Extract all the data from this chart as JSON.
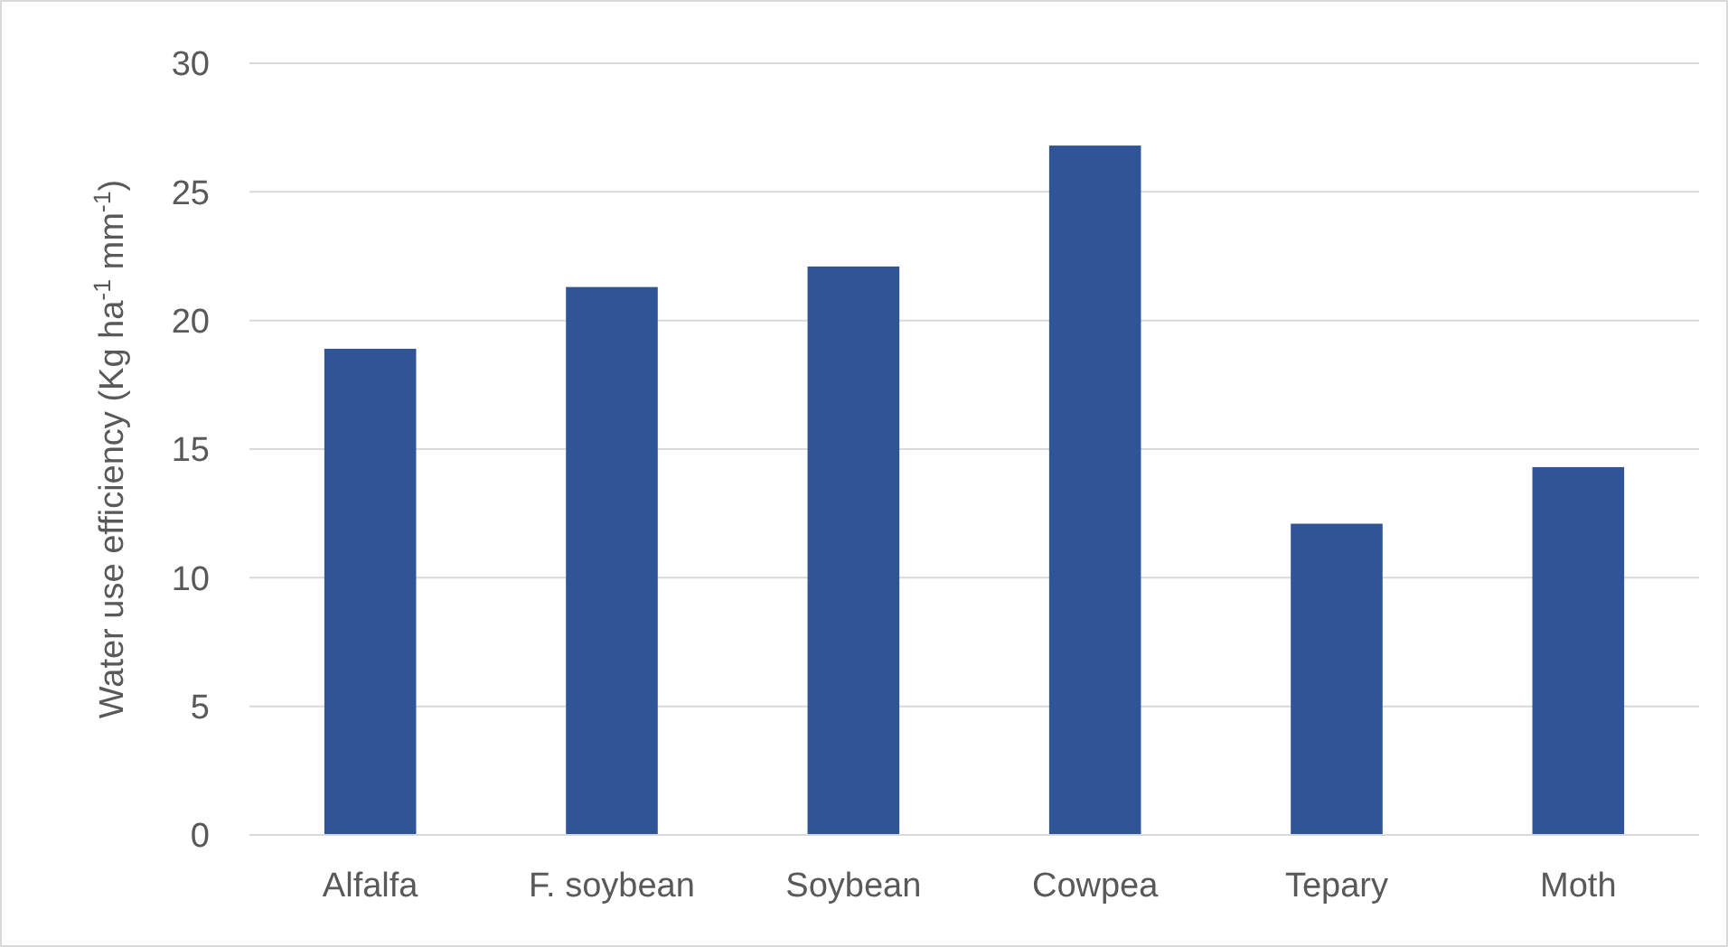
{
  "chart_data": {
    "type": "bar",
    "ylabel": "Water use efficiency (Kg ha$^{-1}$ mm$^{-1}$)",
    "categories": [
      "Alfalfa",
      "F. soybean",
      "Soybean",
      "Cowpea",
      "Tepary",
      "Moth"
    ],
    "values": [
      18.9,
      21.3,
      22.1,
      26.8,
      12.1,
      14.3
    ],
    "color": "#2f5597",
    "ylim": [
      0,
      30
    ],
    "yticks": [
      0,
      5,
      10,
      15,
      20,
      25,
      30
    ],
    "grid": "y"
  }
}
